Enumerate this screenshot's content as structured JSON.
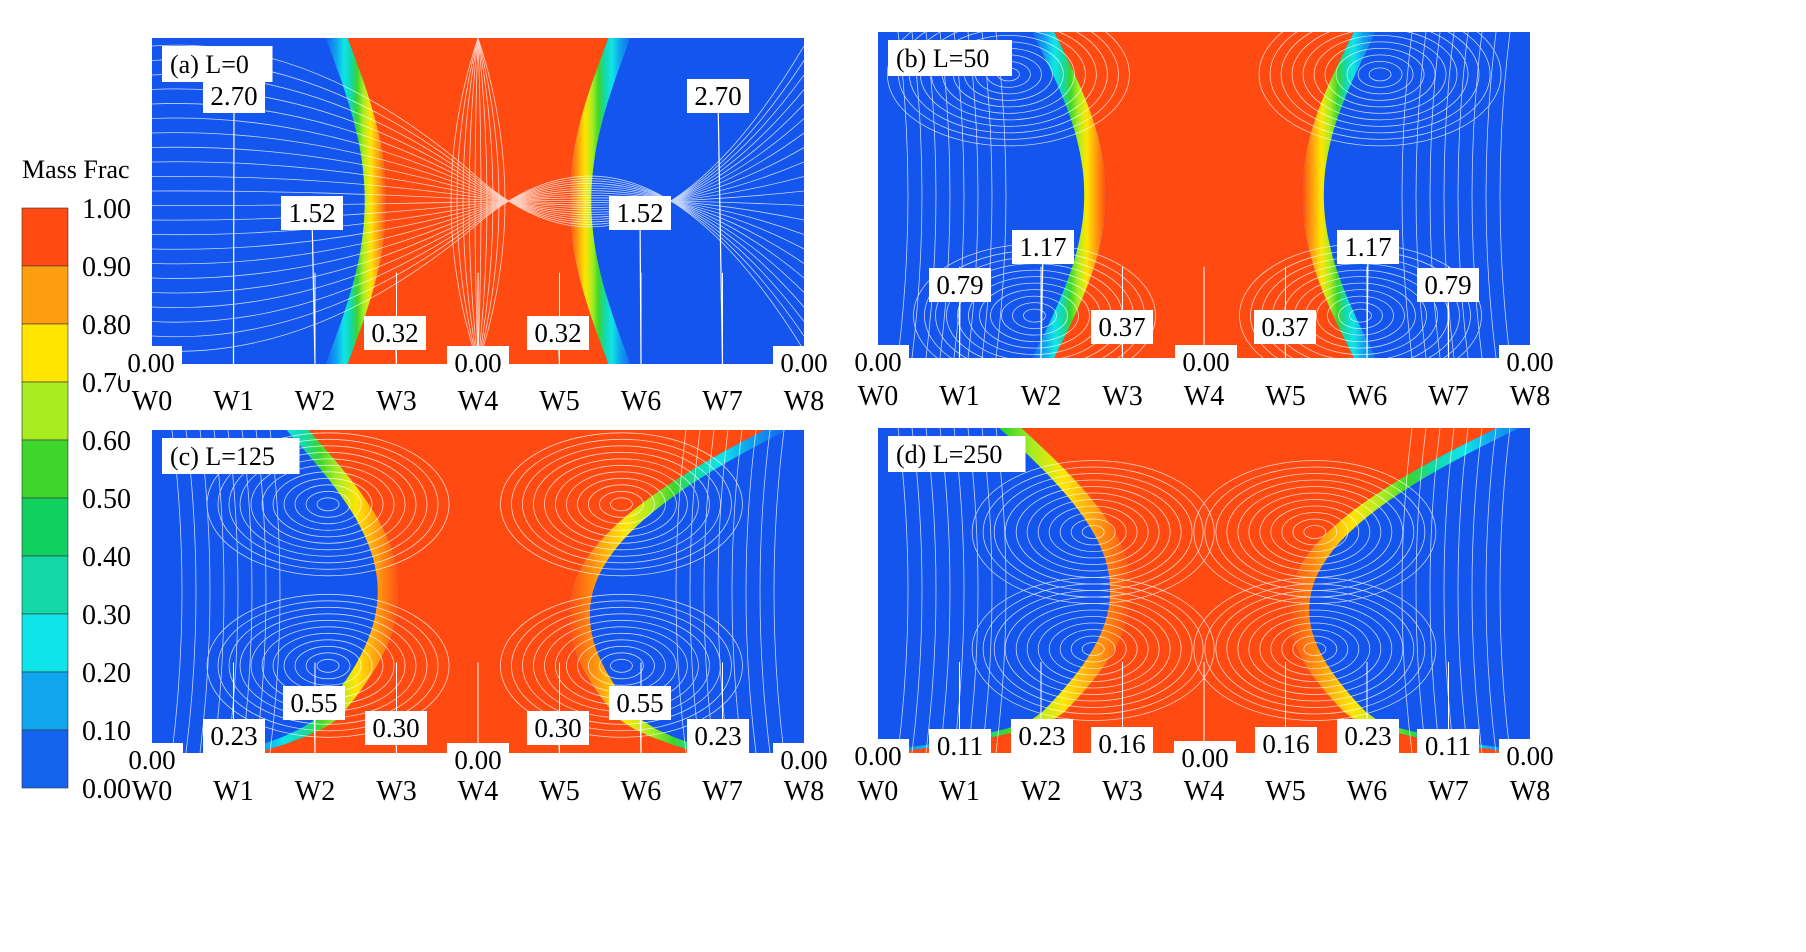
{
  "legend": {
    "title": "Mass Frac",
    "levels": [
      "1.00",
      "0.90",
      "0.80",
      "0.70",
      "0.60",
      "0.50",
      "0.40",
      "0.30",
      "0.20",
      "0.10",
      "0.00"
    ],
    "colors": [
      "#ff4a12",
      "#ff9f10",
      "#ffe500",
      "#a8ec22",
      "#3ed62a",
      "#10d060",
      "#14d8a8",
      "#10e4e8",
      "#10a6ee",
      "#1464f0"
    ]
  },
  "colors": {
    "red": "#ff4a12",
    "blue": "#1455ee",
    "streamline": "#ffffff"
  },
  "chart_data": [
    {
      "type": "contour",
      "panel": "a",
      "title": "(a) L=0",
      "x": [
        "W0",
        "W1",
        "W2",
        "W3",
        "W4",
        "W5",
        "W6",
        "W7",
        "W8"
      ],
      "labels": [
        {
          "text": "2.70",
          "point": "W1"
        },
        {
          "text": "1.52",
          "point": "W2"
        },
        {
          "text": "0.32",
          "point": "W3"
        },
        {
          "text": "0.00",
          "point": "W0"
        },
        {
          "text": "0.00",
          "point": "W4"
        },
        {
          "text": "0.32",
          "point": "W5"
        },
        {
          "text": "1.52",
          "point": "W6"
        },
        {
          "text": "2.70",
          "point": "W7"
        },
        {
          "text": "0.00",
          "point": "W8"
        }
      ]
    },
    {
      "type": "contour",
      "panel": "b",
      "title": "(b) L=50",
      "x": [
        "W0",
        "W1",
        "W2",
        "W3",
        "W4",
        "W5",
        "W6",
        "W7",
        "W8"
      ],
      "labels": [
        {
          "text": "1.17",
          "point": "W2"
        },
        {
          "text": "0.79",
          "point": "W1"
        },
        {
          "text": "0.37",
          "point": "W3"
        },
        {
          "text": "0.00",
          "point": "W0"
        },
        {
          "text": "0.00",
          "point": "W4"
        },
        {
          "text": "0.37",
          "point": "W5"
        },
        {
          "text": "1.17",
          "point": "W6"
        },
        {
          "text": "0.79",
          "point": "W7"
        },
        {
          "text": "0.00",
          "point": "W8"
        }
      ]
    },
    {
      "type": "contour",
      "panel": "c",
      "title": "(c) L=125",
      "x": [
        "W0",
        "W1",
        "W2",
        "W3",
        "W4",
        "W5",
        "W6",
        "W7",
        "W8"
      ],
      "labels": [
        {
          "text": "0.55",
          "point": "W2"
        },
        {
          "text": "0.23",
          "point": "W1"
        },
        {
          "text": "0.30",
          "point": "W3"
        },
        {
          "text": "0.00",
          "point": "W0"
        },
        {
          "text": "0.00",
          "point": "W4"
        },
        {
          "text": "0.30",
          "point": "W5"
        },
        {
          "text": "0.55",
          "point": "W6"
        },
        {
          "text": "0.23",
          "point": "W7"
        },
        {
          "text": "0.00",
          "point": "W8"
        }
      ]
    },
    {
      "type": "contour",
      "panel": "d",
      "title": "(d) L=250",
      "x": [
        "W0",
        "W1",
        "W2",
        "W3",
        "W4",
        "W5",
        "W6",
        "W7",
        "W8"
      ],
      "labels": [
        {
          "text": "0.11",
          "point": "W1"
        },
        {
          "text": "0.23",
          "point": "W2"
        },
        {
          "text": "0.16",
          "point": "W3"
        },
        {
          "text": "0.00",
          "point": "W0"
        },
        {
          "text": "0.00",
          "point": "W4"
        },
        {
          "text": "0.16",
          "point": "W5"
        },
        {
          "text": "0.23",
          "point": "W6"
        },
        {
          "text": "0.11",
          "point": "W7"
        },
        {
          "text": "0.00",
          "point": "W8"
        }
      ]
    }
  ]
}
